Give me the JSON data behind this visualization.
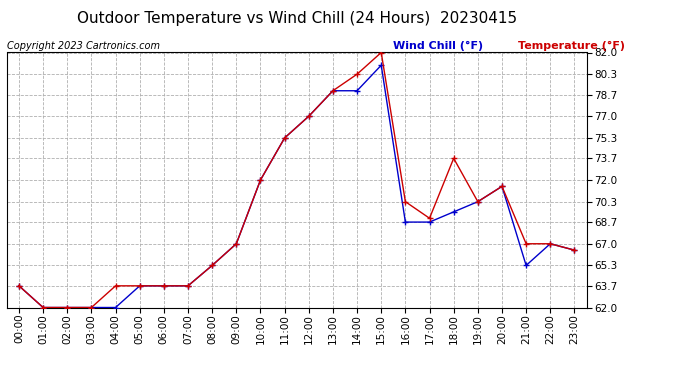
{
  "title": "Outdoor Temperature vs Wind Chill (24 Hours)  20230415",
  "copyright": "Copyright 2023 Cartronics.com",
  "legend_wind_chill": "Wind Chill (°F)",
  "legend_temperature": "Temperature (°F)",
  "hours": [
    "00:00",
    "01:00",
    "02:00",
    "03:00",
    "04:00",
    "05:00",
    "06:00",
    "07:00",
    "08:00",
    "09:00",
    "10:00",
    "11:00",
    "12:00",
    "13:00",
    "14:00",
    "15:00",
    "16:00",
    "17:00",
    "18:00",
    "19:00",
    "20:00",
    "21:00",
    "22:00",
    "23:00"
  ],
  "temperature": [
    63.7,
    62.0,
    62.0,
    62.0,
    63.7,
    63.7,
    63.7,
    63.7,
    65.3,
    67.0,
    72.0,
    75.3,
    77.0,
    79.0,
    80.3,
    82.0,
    70.3,
    69.0,
    73.7,
    70.3,
    71.5,
    67.0,
    67.0,
    66.5
  ],
  "wind_chill": [
    63.7,
    62.0,
    62.0,
    62.0,
    62.0,
    63.7,
    63.7,
    63.7,
    65.3,
    67.0,
    72.0,
    75.3,
    77.0,
    79.0,
    79.0,
    81.0,
    68.7,
    68.7,
    69.5,
    70.3,
    71.5,
    65.3,
    67.0,
    66.5
  ],
  "ylim_min": 62.0,
  "ylim_max": 82.0,
  "yticks": [
    62.0,
    63.7,
    65.3,
    67.0,
    68.7,
    70.3,
    72.0,
    73.7,
    75.3,
    77.0,
    78.7,
    80.3,
    82.0
  ],
  "temp_color": "#cc0000",
  "wind_chill_color": "#0000cc",
  "background_color": "#ffffff",
  "grid_color": "#b0b0b0",
  "title_fontsize": 11,
  "copyright_fontsize": 7,
  "legend_fontsize": 8,
  "tick_fontsize": 7.5
}
